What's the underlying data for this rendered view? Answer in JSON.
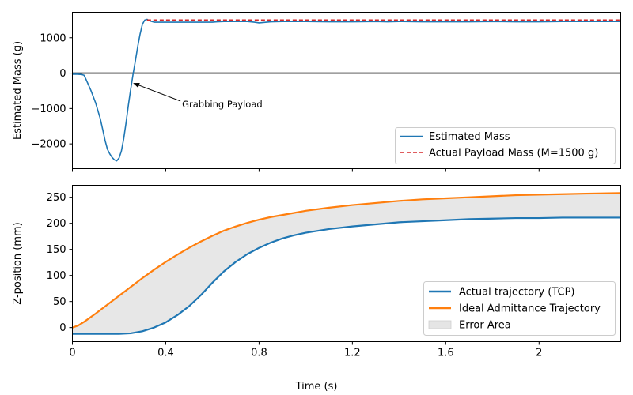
{
  "chart_data": [
    {
      "type": "line",
      "panel": "top",
      "xlabel": "",
      "ylabel": "Estimated Mass (g)",
      "xlim": [
        0,
        2.35
      ],
      "ylim": [
        -2700,
        1720
      ],
      "yticks": [
        -2000,
        -1000,
        0,
        1000
      ],
      "ytick_labels": [
        "−2000",
        "−1000",
        "0",
        "1000"
      ],
      "xticks": [
        0,
        0.4,
        0.8,
        1.2,
        1.6,
        2.0
      ],
      "zero_line": true,
      "legend_position": "lower-right",
      "annotation": {
        "text": "Grabbing Payload",
        "point": [
          0.26,
          -280
        ],
        "text_at": [
          0.47,
          -880
        ]
      },
      "series": [
        {
          "name": "Estimated Mass",
          "color": "#1f77b4",
          "style": "solid",
          "x": [
            0,
            0.02,
            0.04,
            0.05,
            0.06,
            0.08,
            0.1,
            0.12,
            0.13,
            0.14,
            0.15,
            0.16,
            0.17,
            0.18,
            0.19,
            0.2,
            0.21,
            0.22,
            0.23,
            0.24,
            0.25,
            0.26,
            0.27,
            0.28,
            0.29,
            0.3,
            0.31,
            0.32,
            0.33,
            0.35,
            0.4,
            0.5,
            0.6,
            0.62,
            0.65,
            0.7,
            0.75,
            0.78,
            0.8,
            0.85,
            0.9,
            1.0,
            1.1,
            1.2,
            1.3,
            1.35,
            1.4,
            1.5,
            1.6,
            1.7,
            1.8,
            1.9,
            2.0,
            2.1,
            2.2,
            2.35
          ],
          "values": [
            -30,
            -30,
            -40,
            -60,
            -200,
            -500,
            -850,
            -1300,
            -1600,
            -1900,
            -2150,
            -2280,
            -2380,
            -2450,
            -2480,
            -2400,
            -2200,
            -1850,
            -1400,
            -900,
            -450,
            -30,
            350,
            750,
            1100,
            1380,
            1500,
            1520,
            1480,
            1440,
            1440,
            1440,
            1440,
            1450,
            1460,
            1460,
            1460,
            1440,
            1420,
            1450,
            1460,
            1460,
            1450,
            1450,
            1460,
            1450,
            1460,
            1450,
            1450,
            1450,
            1460,
            1450,
            1450,
            1460,
            1460,
            1460
          ]
        },
        {
          "name": "Actual Payload Mass (M=1500 g)",
          "color": "#d62728",
          "style": "dashed",
          "x": [
            0.32,
            2.35
          ],
          "values": [
            1500,
            1500
          ]
        }
      ]
    },
    {
      "type": "line",
      "panel": "bottom",
      "xlabel": "Time (s)",
      "ylabel": "Z-position (mm)",
      "xlim": [
        0,
        2.35
      ],
      "ylim": [
        -27,
        273
      ],
      "yticks": [
        0,
        50,
        100,
        150,
        200,
        250
      ],
      "ytick_labels": [
        "0",
        "50",
        "100",
        "150",
        "200",
        "250"
      ],
      "xticks": [
        0,
        0.4,
        0.8,
        1.2,
        1.6,
        2.0
      ],
      "xtick_labels": [
        "0",
        "0.4",
        "0.8",
        "1.2",
        "1.6",
        "2"
      ],
      "legend_position": "lower-right",
      "fill_between": {
        "name": "Error Area",
        "color": "#d3d3d3",
        "opacity": 0.55
      },
      "series": [
        {
          "name": "Actual trajectory (TCP)",
          "color": "#1f77b4",
          "style": "solid",
          "x": [
            0,
            0.1,
            0.2,
            0.25,
            0.3,
            0.35,
            0.4,
            0.45,
            0.5,
            0.55,
            0.6,
            0.65,
            0.7,
            0.75,
            0.8,
            0.85,
            0.9,
            0.95,
            1.0,
            1.1,
            1.2,
            1.3,
            1.4,
            1.5,
            1.6,
            1.7,
            1.8,
            1.9,
            2.0,
            2.1,
            2.2,
            2.35
          ],
          "values": [
            -12,
            -12,
            -12,
            -11,
            -7,
            0,
            10,
            24,
            41,
            62,
            86,
            108,
            126,
            141,
            153,
            163,
            171,
            177,
            182,
            189,
            194,
            198,
            202,
            204,
            206,
            208,
            209,
            210,
            210,
            211,
            211,
            211
          ]
        },
        {
          "name": "Ideal Admittance Trajectory",
          "color": "#ff7f0e",
          "style": "solid",
          "x": [
            0,
            0.025,
            0.05,
            0.1,
            0.15,
            0.2,
            0.25,
            0.3,
            0.35,
            0.4,
            0.45,
            0.5,
            0.55,
            0.6,
            0.65,
            0.7,
            0.75,
            0.8,
            0.85,
            0.9,
            0.95,
            1.0,
            1.1,
            1.2,
            1.3,
            1.4,
            1.5,
            1.6,
            1.7,
            1.8,
            1.9,
            2.0,
            2.1,
            2.2,
            2.35
          ],
          "values": [
            0,
            4,
            11,
            27,
            44,
            61,
            78,
            95,
            111,
            126,
            140,
            153,
            165,
            176,
            186,
            194,
            201,
            207,
            212,
            216,
            220,
            224,
            230,
            235,
            239,
            243,
            246,
            248,
            250,
            252,
            254,
            255,
            256,
            257,
            258
          ]
        }
      ]
    }
  ]
}
